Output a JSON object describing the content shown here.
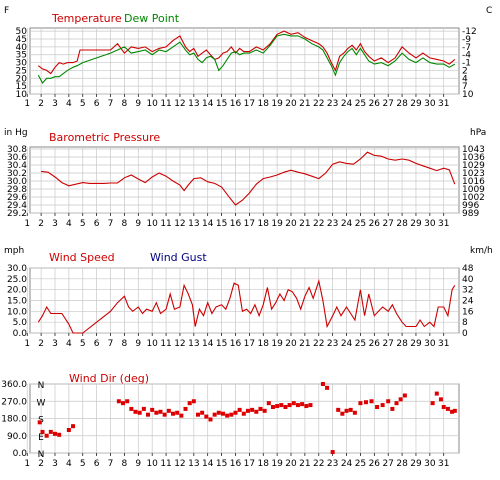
{
  "colors": {
    "temperature": "#cc0000",
    "dew_point": "#008800",
    "pressure": "#cc0000",
    "wind_speed": "#cc0000",
    "wind_gust": "#000080",
    "wind_dir": "#dd0000",
    "compass": "#cc0000",
    "grid": "#c8c8c8",
    "frame": "#8a8a8a"
  },
  "chart_data": [
    {
      "type": "line",
      "title": "",
      "legend": [
        "Temperature",
        "Dew Point"
      ],
      "left_unit": "F",
      "right_unit": "C",
      "x_ticks": [
        "1",
        "2",
        "3",
        "4",
        "5",
        "6",
        "7",
        "8",
        "9",
        "10",
        "11",
        "12",
        "13",
        "14",
        "15",
        "16",
        "17",
        "18",
        "19",
        "20",
        "21",
        "22",
        "23",
        "24",
        "25",
        "26",
        "27",
        "28",
        "29",
        "30",
        "31"
      ],
      "y_ticks": [
        "10",
        "15",
        "20",
        "25",
        "30",
        "35",
        "40",
        "45",
        "50"
      ],
      "right_ticks": [
        "10",
        "7",
        "4",
        "2",
        "-1",
        "-4",
        "-7",
        "-9",
        "-12"
      ],
      "ylim": [
        10,
        52
      ],
      "grid": true,
      "series": [
        {
          "name": "Temperature",
          "x": [
            1.8,
            2.1,
            2.4,
            2.7,
            3.0,
            3.3,
            3.6,
            3.9,
            4.3,
            4.6,
            4.8,
            5.2,
            6.0,
            7.0,
            7.5,
            8.0,
            8.5,
            9.0,
            9.5,
            10.0,
            10.5,
            11.0,
            11.5,
            12.0,
            12.4,
            12.7,
            13.0,
            13.3,
            13.6,
            13.9,
            14.2,
            14.5,
            14.8,
            15.1,
            15.4,
            15.7,
            16.0,
            16.3,
            16.6,
            17.0,
            17.5,
            18.0,
            18.5,
            19.0,
            19.5,
            20.0,
            20.5,
            21.0,
            21.5,
            22.0,
            22.3,
            22.6,
            22.9,
            23.2,
            23.5,
            23.8,
            24.1,
            24.4,
            24.7,
            25.0,
            25.3,
            25.6,
            26.0,
            26.5,
            27.0,
            27.5,
            28.0,
            28.5,
            29.0,
            29.5,
            30.0,
            30.5,
            31.0,
            31.4,
            31.8
          ],
          "y": [
            28,
            26,
            25,
            23,
            27,
            30,
            29,
            30,
            30,
            31,
            38,
            38,
            38,
            38,
            42,
            36,
            40,
            39,
            40,
            37,
            39,
            40,
            44,
            47,
            40,
            37,
            39,
            34,
            36,
            38,
            35,
            32,
            33,
            36,
            37,
            40,
            36,
            39,
            37,
            37,
            40,
            38,
            42,
            48,
            50,
            48,
            49,
            46,
            44,
            42,
            40,
            36,
            30,
            25,
            34,
            36,
            39,
            41,
            38,
            42,
            37,
            34,
            31,
            33,
            30,
            33,
            40,
            36,
            33,
            36,
            33,
            32,
            31,
            29,
            32
          ]
        },
        {
          "name": "Dew Point",
          "x": [
            1.8,
            2.1,
            2.4,
            2.7,
            3.0,
            3.3,
            3.6,
            3.9,
            4.3,
            4.6,
            5.0,
            6.0,
            7.0,
            7.5,
            8.0,
            8.5,
            9.0,
            9.5,
            10.0,
            10.5,
            11.0,
            11.5,
            12.0,
            12.4,
            12.7,
            13.0,
            13.3,
            13.6,
            13.9,
            14.2,
            14.5,
            14.8,
            15.1,
            15.4,
            15.7,
            16.0,
            16.3,
            16.6,
            17.0,
            17.5,
            18.0,
            18.5,
            19.0,
            19.5,
            20.0,
            20.5,
            21.0,
            21.5,
            22.0,
            22.3,
            22.6,
            22.9,
            23.2,
            23.5,
            23.8,
            24.1,
            24.4,
            24.7,
            25.0,
            25.3,
            25.6,
            26.0,
            26.5,
            27.0,
            27.5,
            28.0,
            28.5,
            29.0,
            29.5,
            30.0,
            30.5,
            31.0,
            31.4,
            31.8
          ],
          "y": [
            22,
            17,
            20,
            20,
            21,
            21,
            23,
            25,
            27,
            28,
            30,
            33,
            36,
            38,
            40,
            36,
            37,
            38,
            35,
            38,
            37,
            40,
            43,
            38,
            35,
            36,
            32,
            30,
            33,
            34,
            32,
            25,
            28,
            32,
            36,
            37,
            35,
            36,
            36,
            38,
            36,
            41,
            47,
            48,
            47,
            47,
            45,
            42,
            40,
            38,
            33,
            28,
            22,
            30,
            34,
            37,
            39,
            35,
            39,
            35,
            31,
            29,
            30,
            28,
            31,
            36,
            32,
            30,
            33,
            30,
            29,
            29,
            27,
            29
          ]
        }
      ]
    },
    {
      "type": "line",
      "title": "Barometric Pressure",
      "left_unit": "in Hg",
      "right_unit": "hPa",
      "x_ticks": [
        "1",
        "2",
        "3",
        "4",
        "5",
        "6",
        "7",
        "8",
        "9",
        "10",
        "11",
        "12",
        "13",
        "14",
        "15",
        "16",
        "17",
        "18",
        "19",
        "20",
        "21",
        "22",
        "23",
        "24",
        "25",
        "26",
        "27",
        "28",
        "29",
        "30",
        "31"
      ],
      "y_ticks": [
        "29.2",
        "29.4",
        "29.6",
        "29.8",
        "30.0",
        "30.2",
        "30.4",
        "30.6",
        "30.8"
      ],
      "right_ticks": [
        "989",
        "996",
        "1002",
        "1009",
        "1016",
        "1023",
        "1029",
        "1036",
        "1043"
      ],
      "ylim": [
        29.2,
        30.85
      ],
      "grid": true,
      "series": [
        {
          "name": "",
          "x": [
            2.0,
            2.5,
            3.0,
            3.5,
            4.0,
            4.5,
            5.0,
            5.5,
            6.0,
            6.5,
            7.0,
            7.5,
            8.0,
            8.5,
            9.0,
            9.5,
            10.0,
            10.5,
            11.0,
            11.5,
            12.0,
            12.3,
            12.6,
            13.0,
            13.5,
            14.0,
            14.5,
            15.0,
            15.5,
            16.0,
            16.5,
            17.0,
            17.5,
            18.0,
            18.5,
            19.0,
            19.5,
            20.0,
            20.5,
            21.0,
            21.5,
            22.0,
            22.5,
            23.0,
            23.5,
            24.0,
            24.5,
            25.0,
            25.5,
            26.0,
            26.5,
            27.0,
            27.5,
            28.0,
            28.5,
            29.0,
            29.5,
            30.0,
            30.5,
            31.0,
            31.4,
            31.8
          ],
          "y": [
            30.24,
            30.22,
            30.1,
            29.96,
            29.88,
            29.92,
            29.96,
            29.94,
            29.94,
            29.94,
            29.95,
            29.95,
            30.08,
            30.15,
            30.05,
            29.96,
            30.1,
            30.2,
            30.12,
            30.0,
            29.9,
            29.76,
            29.9,
            30.06,
            30.08,
            29.98,
            29.94,
            29.85,
            29.62,
            29.4,
            29.52,
            29.7,
            29.92,
            30.06,
            30.1,
            30.15,
            30.22,
            30.27,
            30.22,
            30.18,
            30.12,
            30.06,
            30.2,
            30.42,
            30.48,
            30.44,
            30.42,
            30.55,
            30.72,
            30.64,
            30.62,
            30.55,
            30.52,
            30.55,
            30.52,
            30.44,
            30.38,
            30.32,
            30.26,
            30.32,
            30.28,
            29.92
          ]
        }
      ]
    },
    {
      "type": "line",
      "title": "",
      "legend": [
        "Wind Speed",
        "Wind Gust"
      ],
      "left_unit": "mph",
      "right_unit": "km/h",
      "x_ticks": [
        "1",
        "2",
        "3",
        "4",
        "5",
        "6",
        "7",
        "8",
        "9",
        "10",
        "11",
        "12",
        "13",
        "14",
        "15",
        "16",
        "17",
        "18",
        "19",
        "20",
        "21",
        "22",
        "23",
        "24",
        "25",
        "26",
        "27",
        "28",
        "29",
        "30",
        "31"
      ],
      "y_ticks": [
        "0.0",
        "5.0",
        "10.0",
        "15.0",
        "20.0",
        "25.0",
        "30.0"
      ],
      "right_ticks": [
        "0",
        "8",
        "16",
        "24",
        "32",
        "40",
        "48"
      ],
      "ylim": [
        0,
        30
      ],
      "grid": true,
      "series": [
        {
          "name": "Wind Speed",
          "x": [
            1.8,
            2.1,
            2.4,
            2.7,
            3.0,
            3.5,
            4.0,
            4.3,
            4.6,
            5.0,
            6.0,
            7.0,
            7.5,
            8.0,
            8.3,
            8.6,
            9.0,
            9.3,
            9.6,
            10.0,
            10.3,
            10.6,
            11.0,
            11.3,
            11.6,
            12.0,
            12.3,
            12.6,
            12.9,
            13.1,
            13.4,
            13.7,
            14.0,
            14.3,
            14.6,
            15.0,
            15.3,
            15.6,
            15.9,
            16.2,
            16.5,
            16.8,
            17.1,
            17.4,
            17.7,
            18.0,
            18.3,
            18.6,
            18.9,
            19.2,
            19.5,
            19.8,
            20.1,
            20.4,
            20.7,
            21.0,
            21.3,
            21.6,
            22.0,
            22.3,
            22.6,
            23.0,
            23.3,
            23.6,
            24.0,
            24.3,
            24.6,
            25.0,
            25.3,
            25.6,
            26.0,
            26.3,
            26.6,
            27.0,
            27.3,
            27.6,
            28.0,
            28.3,
            28.6,
            29.0,
            29.3,
            29.6,
            30.0,
            30.3,
            30.6,
            31.0,
            31.3,
            31.6,
            31.8
          ],
          "y": [
            5,
            8,
            12,
            9,
            9,
            9,
            4,
            0,
            0,
            0,
            5,
            10,
            14,
            17,
            12,
            10,
            12,
            9,
            11,
            10,
            14,
            9,
            11,
            18,
            11,
            12,
            22,
            18,
            13,
            3,
            11,
            8,
            14,
            9,
            12,
            13,
            11,
            16,
            23,
            22,
            10,
            11,
            9,
            13,
            8,
            13,
            21,
            11,
            14,
            18,
            15,
            20,
            19,
            16,
            11,
            17,
            21,
            16,
            24,
            15,
            3,
            8,
            12,
            8,
            12,
            9,
            6,
            20,
            8,
            18,
            8,
            10,
            12,
            10,
            13,
            9,
            5,
            3,
            3,
            3,
            6,
            3,
            5,
            3,
            12,
            12,
            8,
            20,
            22
          ]
        },
        {
          "name": "Wind Gust",
          "x": [],
          "y": []
        }
      ]
    },
    {
      "type": "scatter",
      "title": "Wind Dir (deg)",
      "left_unit": "",
      "right_unit": "",
      "x_ticks": [
        "1",
        "2",
        "3",
        "4",
        "5",
        "6",
        "7",
        "8",
        "9",
        "10",
        "11",
        "12",
        "13",
        "14",
        "15",
        "16",
        "17",
        "18",
        "19",
        "20",
        "21",
        "22",
        "23",
        "24",
        "25",
        "26",
        "27",
        "28",
        "29",
        "30",
        "31"
      ],
      "y_ticks": [
        "0.0",
        "90.0",
        "180.0",
        "270.0",
        "360.0"
      ],
      "compass": [
        "N",
        "W",
        "S",
        "E",
        "N"
      ],
      "ylim": [
        0,
        360
      ],
      "grid": true,
      "series": [
        {
          "name": "",
          "x": [
            1.9,
            2.1,
            2.4,
            2.7,
            3.0,
            3.3,
            4.0,
            4.3,
            7.6,
            7.9,
            8.2,
            8.5,
            8.8,
            9.1,
            9.4,
            9.7,
            10.0,
            10.3,
            10.6,
            10.9,
            11.2,
            11.5,
            11.8,
            12.1,
            12.4,
            12.7,
            13.0,
            13.3,
            13.6,
            13.9,
            14.2,
            14.5,
            14.8,
            15.1,
            15.4,
            15.7,
            16.0,
            16.3,
            16.6,
            16.9,
            17.2,
            17.5,
            17.8,
            18.1,
            18.4,
            18.7,
            19.0,
            19.3,
            19.6,
            19.9,
            20.2,
            20.5,
            20.8,
            21.1,
            21.4,
            22.3,
            22.6,
            23.0,
            23.4,
            23.7,
            24.0,
            24.3,
            24.6,
            25.0,
            25.4,
            25.8,
            26.2,
            26.6,
            27.0,
            27.3,
            27.6,
            27.9,
            28.2,
            30.2,
            30.5,
            30.8,
            31.0,
            31.3,
            31.6,
            31.8
          ],
          "y": [
            160,
            110,
            90,
            110,
            100,
            95,
            120,
            140,
            270,
            260,
            270,
            230,
            215,
            210,
            230,
            200,
            225,
            210,
            215,
            200,
            220,
            205,
            210,
            195,
            230,
            260,
            270,
            200,
            210,
            190,
            175,
            200,
            210,
            205,
            195,
            200,
            210,
            225,
            205,
            220,
            225,
            215,
            230,
            220,
            260,
            240,
            245,
            250,
            240,
            250,
            260,
            250,
            255,
            245,
            250,
            360,
            340,
            5,
            225,
            205,
            220,
            225,
            210,
            260,
            265,
            270,
            240,
            250,
            270,
            230,
            260,
            280,
            300,
            260,
            310,
            280,
            240,
            230,
            215,
            220
          ]
        }
      ]
    }
  ]
}
